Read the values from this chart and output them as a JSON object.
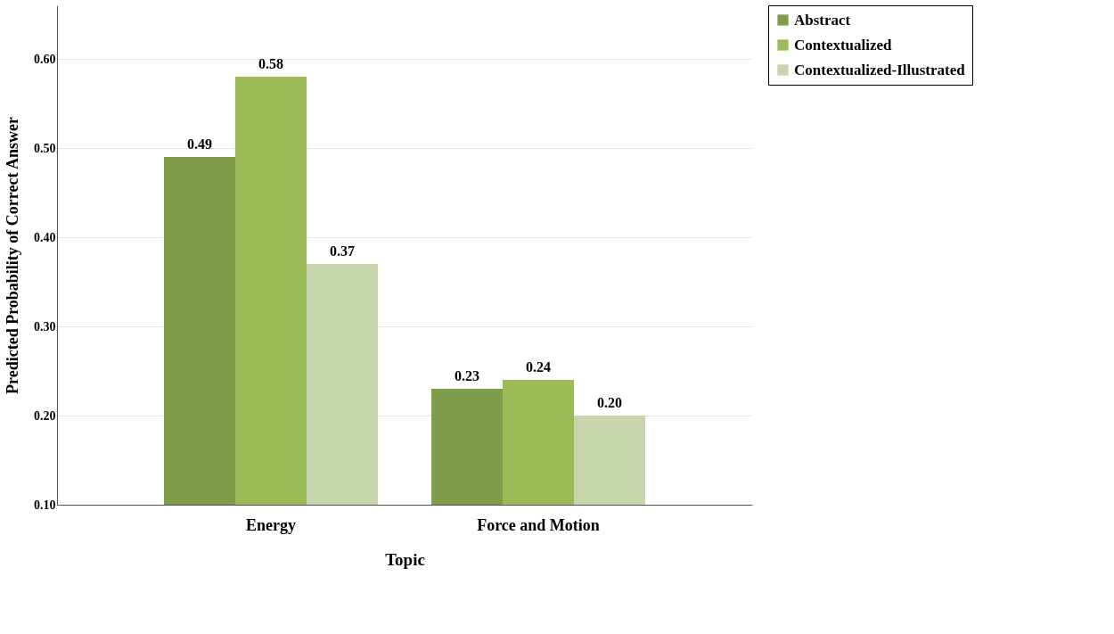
{
  "chart_data": {
    "type": "bar",
    "xlabel": "Topic",
    "ylabel": "Predicted Probability of Correct Answer",
    "categories": [
      "Energy",
      "Force and Motion"
    ],
    "series": [
      {
        "name": "Abstract",
        "color": "#7f9c4a",
        "values": [
          0.49,
          0.23
        ],
        "value_labels": [
          "0.49",
          "0.23"
        ]
      },
      {
        "name": "Contextualized",
        "color": "#9bbb59",
        "values": [
          0.58,
          0.24
        ],
        "value_labels": [
          "0.58",
          "0.24"
        ]
      },
      {
        "name": "Contextualized-Illustrated",
        "color": "#c6d6aa",
        "values": [
          0.37,
          0.2
        ],
        "value_labels": [
          "0.37",
          "0.20"
        ]
      }
    ],
    "ylim": [
      0.1,
      0.66
    ],
    "yticks": [
      {
        "value": 0.1,
        "label": "0.10"
      },
      {
        "value": 0.2,
        "label": "0.20"
      },
      {
        "value": 0.3,
        "label": "0.30"
      },
      {
        "value": 0.4,
        "label": "0.40"
      },
      {
        "value": 0.5,
        "label": "0.50"
      },
      {
        "value": 0.6,
        "label": "0.60"
      }
    ],
    "grid": "y",
    "legend": "right"
  }
}
